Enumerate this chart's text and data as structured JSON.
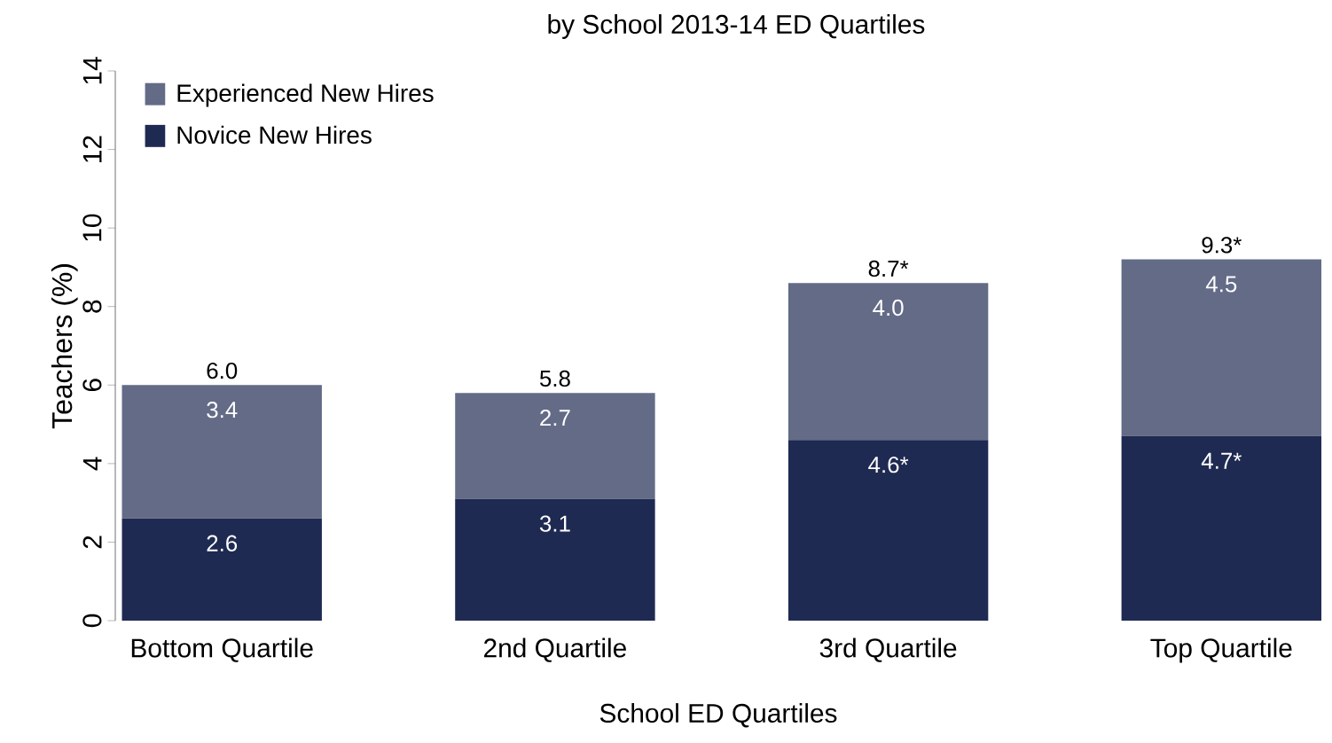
{
  "chart_data": {
    "type": "bar",
    "title": "by School 2013-14 ED Quartiles",
    "xlabel": "School ED Quartiles",
    "ylabel": "Teachers (%)",
    "categories": [
      "Bottom Quartile",
      "2nd Quartile",
      "3rd Quartile",
      "Top Quartile"
    ],
    "stacked": true,
    "series": [
      {
        "name": "Novice New Hires",
        "color": "#1f2a52",
        "values": [
          2.6,
          3.1,
          4.6,
          4.7
        ],
        "value_labels": [
          "2.6",
          "3.1",
          "4.6*",
          "4.7*"
        ]
      },
      {
        "name": "Experienced New Hires",
        "color": "#636b87",
        "values": [
          3.4,
          2.7,
          4.0,
          4.5
        ],
        "value_labels": [
          "3.4",
          "2.7",
          "4.0",
          "4.5"
        ]
      }
    ],
    "totals": [
      "6.0",
      "5.8",
      "8.7*",
      "9.3*"
    ],
    "ylim": [
      0,
      14
    ],
    "yticks": [
      0,
      2,
      4,
      6,
      8,
      10,
      12,
      14
    ],
    "legend": "top left"
  }
}
